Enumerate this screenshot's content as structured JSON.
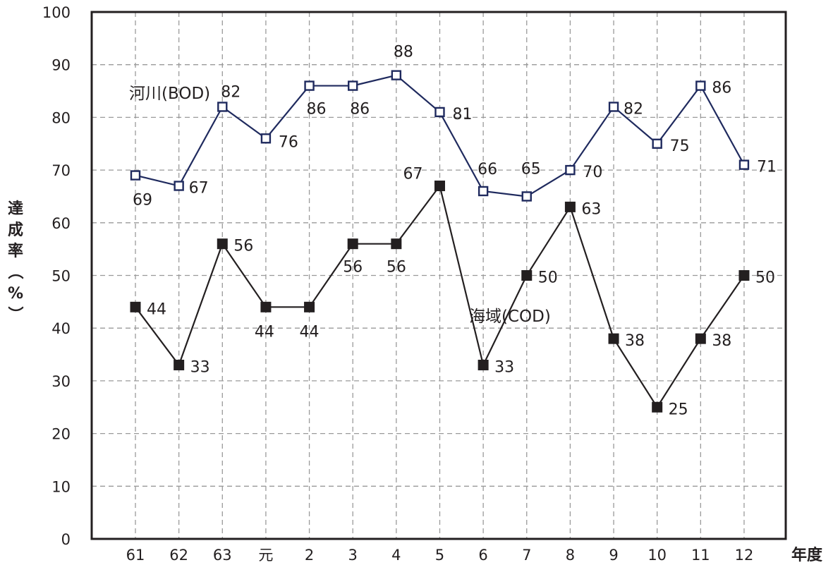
{
  "chart_data": {
    "type": "line",
    "categories": [
      "61",
      "62",
      "63",
      "元",
      "2",
      "3",
      "4",
      "5",
      "6",
      "7",
      "8",
      "9",
      "10",
      "11",
      "12"
    ],
    "series": [
      {
        "name": "河川(BOD)",
        "color": "#1f2a5e",
        "marker": "open-square",
        "values": [
          69,
          67,
          82,
          76,
          86,
          86,
          88,
          81,
          66,
          65,
          70,
          82,
          75,
          86,
          71
        ]
      },
      {
        "name": "海域(COD)",
        "color": "#231f20",
        "marker": "filled-square",
        "values": [
          44,
          33,
          56,
          44,
          44,
          56,
          56,
          67,
          33,
          50,
          63,
          38,
          25,
          38,
          50
        ]
      }
    ],
    "xlabel": "年度",
    "ylabel": "達成率（%）",
    "ylim": [
      0,
      100
    ],
    "yticks": [
      0,
      10,
      20,
      30,
      40,
      50,
      60,
      70,
      80,
      90,
      100
    ],
    "grid": true,
    "legend": "inline"
  }
}
